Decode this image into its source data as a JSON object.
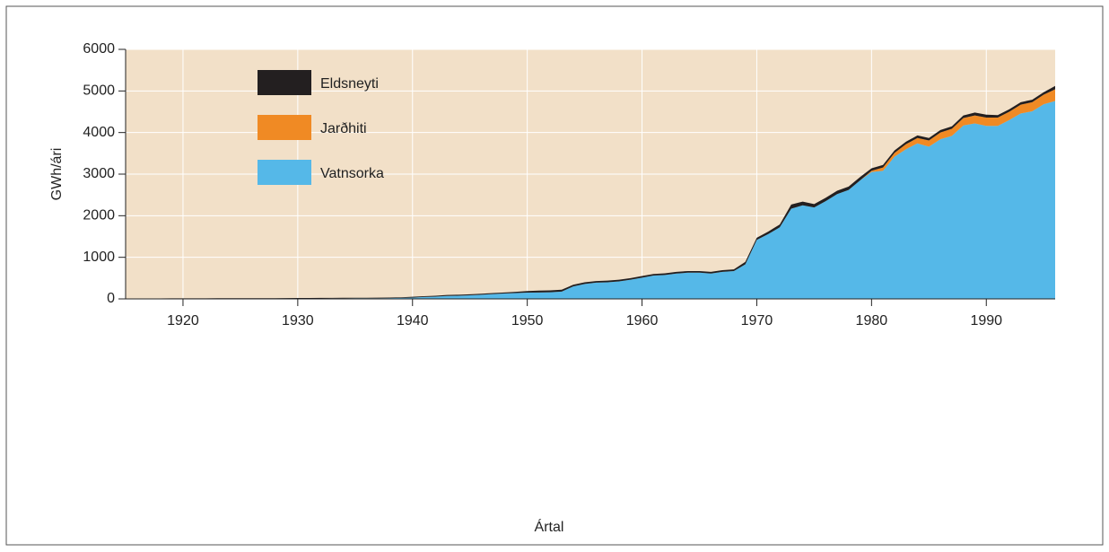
{
  "chart_data": {
    "type": "stacked_area",
    "xlabel": "Ártal",
    "ylabel": "GWh/ári",
    "x": [
      1915,
      1916,
      1917,
      1918,
      1919,
      1920,
      1921,
      1922,
      1923,
      1924,
      1925,
      1926,
      1927,
      1928,
      1929,
      1930,
      1931,
      1932,
      1933,
      1934,
      1935,
      1936,
      1937,
      1938,
      1939,
      1940,
      1941,
      1942,
      1943,
      1944,
      1945,
      1946,
      1947,
      1948,
      1949,
      1950,
      1951,
      1952,
      1953,
      1954,
      1955,
      1956,
      1957,
      1958,
      1959,
      1960,
      1961,
      1962,
      1963,
      1964,
      1965,
      1966,
      1967,
      1968,
      1969,
      1970,
      1971,
      1972,
      1973,
      1974,
      1975,
      1976,
      1977,
      1978,
      1979,
      1980,
      1981,
      1982,
      1983,
      1984,
      1985,
      1986,
      1987,
      1988,
      1989,
      1990,
      1991,
      1992,
      1993,
      1994,
      1995,
      1996
    ],
    "series": [
      {
        "name": "Vatnsorka",
        "color": "#55b8e8",
        "values": [
          1,
          1,
          2,
          2,
          3,
          3,
          4,
          4,
          5,
          5,
          6,
          6,
          7,
          7,
          8,
          9,
          10,
          12,
          13,
          14,
          15,
          16,
          17,
          20,
          25,
          30,
          45,
          55,
          70,
          75,
          85,
          100,
          115,
          130,
          140,
          150,
          155,
          160,
          175,
          300,
          360,
          390,
          400,
          420,
          460,
          510,
          560,
          575,
          610,
          630,
          630,
          610,
          650,
          670,
          830,
          1420,
          1560,
          1720,
          2170,
          2250,
          2200,
          2350,
          2520,
          2620,
          2850,
          3050,
          3080,
          3420,
          3600,
          3740,
          3660,
          3840,
          3920,
          4170,
          4220,
          4160,
          4160,
          4300,
          4460,
          4510,
          4680,
          4760
        ]
      },
      {
        "name": "Jarðhiti",
        "color": "#f08a24",
        "values": [
          0,
          0,
          0,
          0,
          0,
          0,
          0,
          0,
          0,
          0,
          0,
          0,
          0,
          0,
          0,
          0,
          0,
          0,
          0,
          0,
          0,
          0,
          0,
          0,
          0,
          0,
          0,
          0,
          0,
          0,
          0,
          0,
          0,
          0,
          0,
          0,
          0,
          0,
          0,
          0,
          0,
          0,
          0,
          0,
          0,
          0,
          0,
          0,
          0,
          0,
          0,
          0,
          0,
          0,
          0,
          0,
          0,
          0,
          0,
          0,
          0,
          0,
          0,
          0,
          0,
          30,
          80,
          90,
          120,
          130,
          150,
          160,
          170,
          180,
          190,
          200,
          200,
          200,
          210,
          220,
          230,
          280
        ]
      },
      {
        "name": "Eldsneyti",
        "color": "#231f20",
        "values": [
          10,
          10,
          10,
          10,
          10,
          10,
          10,
          10,
          10,
          10,
          10,
          10,
          10,
          10,
          10,
          12,
          12,
          12,
          12,
          12,
          12,
          12,
          12,
          12,
          12,
          20,
          20,
          20,
          25,
          25,
          25,
          25,
          25,
          25,
          30,
          40,
          45,
          45,
          45,
          40,
          40,
          40,
          40,
          40,
          40,
          40,
          40,
          40,
          40,
          40,
          40,
          40,
          40,
          40,
          60,
          50,
          60,
          70,
          100,
          90,
          80,
          80,
          80,
          80,
          80,
          60,
          60,
          60,
          60,
          60,
          60,
          60,
          60,
          60,
          70,
          70,
          60,
          60,
          60,
          60,
          60,
          80
        ]
      }
    ],
    "xlim": [
      1915,
      1996
    ],
    "xticks": [
      1920,
      1930,
      1940,
      1950,
      1960,
      1970,
      1980,
      1990
    ],
    "ylim": [
      0,
      6000
    ],
    "yticks": [
      0,
      1000,
      2000,
      3000,
      4000,
      5000,
      6000
    ],
    "grid": true,
    "legend": "upper left"
  }
}
